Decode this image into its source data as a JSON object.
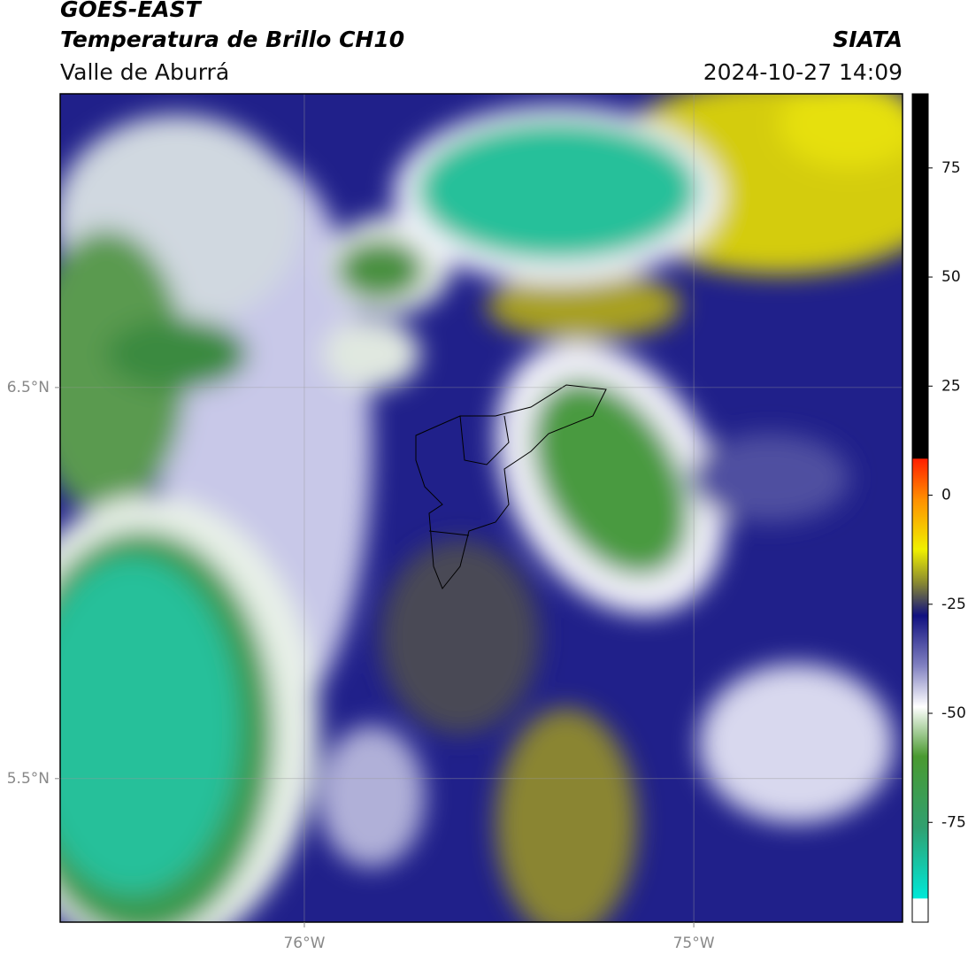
{
  "header": {
    "satellite": "GOES-EAST",
    "product": "Temperatura de Brillo CH10",
    "region": "Valle de Aburrá",
    "agency": "SIATA",
    "datetime": "2024-10-27 14:09"
  },
  "map": {
    "xlim": [
      -76.627,
      -74.464
    ],
    "ylim": [
      5.133,
      7.251
    ],
    "xticks": [
      {
        "value": -76,
        "label": "76°W"
      },
      {
        "value": -75,
        "label": "75°W"
      }
    ],
    "yticks": [
      {
        "value": 6.5,
        "label": "6.5°N"
      },
      {
        "value": 5.5,
        "label": "5.5°N"
      }
    ],
    "grid": true
  },
  "colorbar": {
    "lim": [
      -93,
      92
    ],
    "ticks": [
      75,
      50,
      25,
      0,
      -25,
      -50,
      -75
    ]
  }
}
